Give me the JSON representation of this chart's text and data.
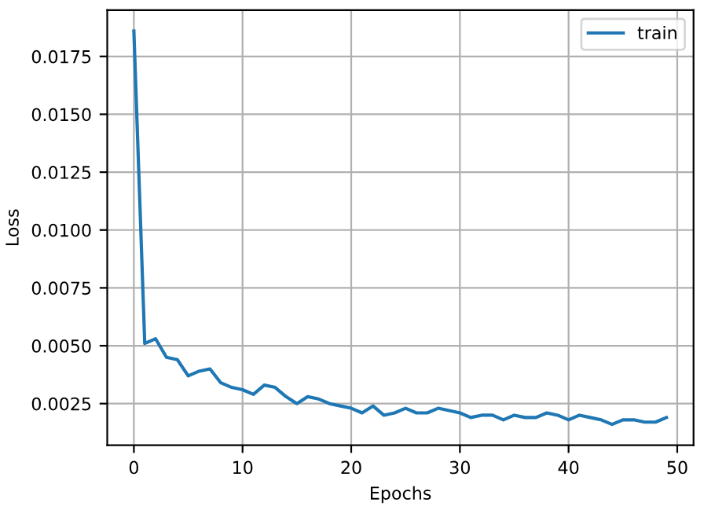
{
  "chart_data": {
    "type": "line",
    "xlabel": "Epochs",
    "ylabel": "Loss",
    "x": [
      0,
      1,
      2,
      3,
      4,
      5,
      6,
      7,
      8,
      9,
      10,
      11,
      12,
      13,
      14,
      15,
      16,
      17,
      18,
      19,
      20,
      21,
      22,
      23,
      24,
      25,
      26,
      27,
      28,
      29,
      30,
      31,
      32,
      33,
      34,
      35,
      36,
      37,
      38,
      39,
      40,
      41,
      42,
      43,
      44,
      45,
      46,
      47,
      48,
      49
    ],
    "series": [
      {
        "name": "train",
        "color": "#1f77b4",
        "values": [
          0.0186,
          0.0051,
          0.0053,
          0.0045,
          0.0044,
          0.0037,
          0.0039,
          0.004,
          0.0034,
          0.0032,
          0.0031,
          0.0029,
          0.0033,
          0.0032,
          0.0028,
          0.0025,
          0.0028,
          0.0027,
          0.0025,
          0.0024,
          0.0023,
          0.0021,
          0.0024,
          0.002,
          0.0021,
          0.0023,
          0.0021,
          0.0021,
          0.0023,
          0.0022,
          0.0021,
          0.0019,
          0.002,
          0.002,
          0.0018,
          0.002,
          0.0019,
          0.0019,
          0.0021,
          0.002,
          0.0018,
          0.002,
          0.0019,
          0.0018,
          0.0016,
          0.0018,
          0.0018,
          0.0017,
          0.0017,
          0.0019
        ]
      }
    ],
    "xlim": [
      -2.45,
      51.5
    ],
    "ylim": [
      0.0007,
      0.0195
    ],
    "xticks": [
      0,
      10,
      20,
      30,
      40,
      50
    ],
    "yticks": [
      {
        "value": 0.0025,
        "label": "0.0025"
      },
      {
        "value": 0.005,
        "label": "0.0050"
      },
      {
        "value": 0.0075,
        "label": "0.0075"
      },
      {
        "value": 0.01,
        "label": "0.0100"
      },
      {
        "value": 0.0125,
        "label": "0.0125"
      },
      {
        "value": 0.015,
        "label": "0.0150"
      },
      {
        "value": 0.0175,
        "label": "0.0175"
      }
    ],
    "grid": true,
    "legend": "top right"
  }
}
